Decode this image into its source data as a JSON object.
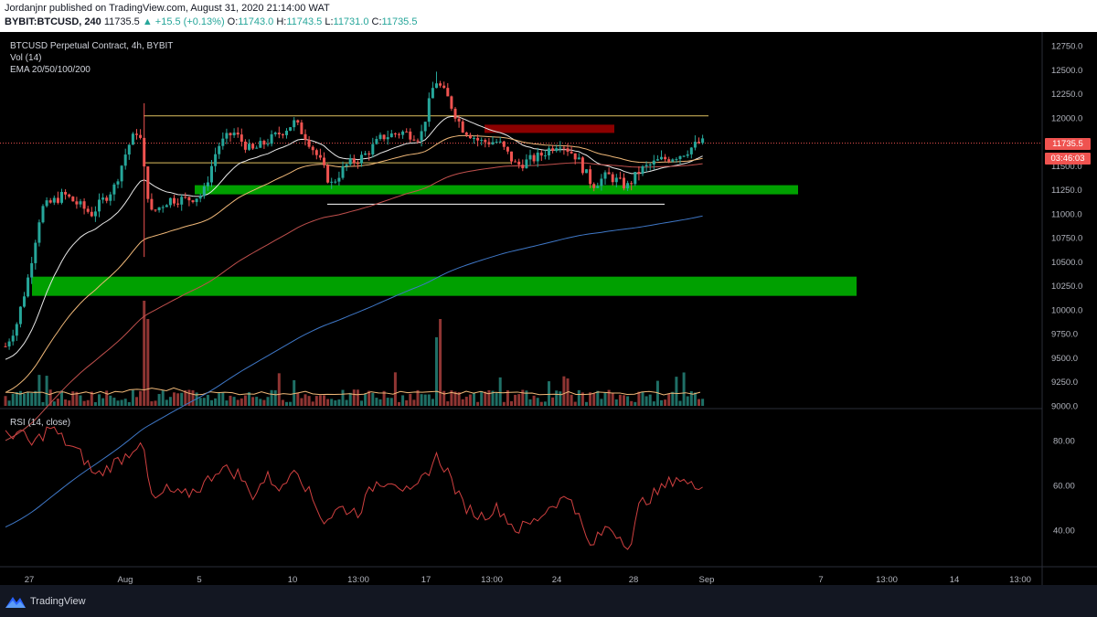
{
  "header": {
    "published": "Jordanjnr published on TradingView.com, August 31, 2020 21:14:00 WAT",
    "symbol": "BYBIT:BTCUSD, 240",
    "last": "11735.5",
    "change": "▲ +15.5 (+0.13%)",
    "ohlc": {
      "o_label": "O:",
      "o": "11743.0",
      "h_label": "H:",
      "h": "11743.5",
      "l_label": "L:",
      "l": "11731.0",
      "c_label": "C:",
      "c": "11735.5"
    }
  },
  "legend": {
    "title": "BTCUSD Perpetual Contract, 4h, BYBIT",
    "vol": "Vol (14)",
    "ema": "EMA 20/50/100/200"
  },
  "rsi_label": "RSI (14, close)",
  "price_axis": {
    "ticks": [
      "12750.0",
      "12500.0",
      "12250.0",
      "12000.0",
      "11750.0",
      "11500.0",
      "11250.0",
      "11000.0",
      "10750.0",
      "10500.0",
      "10250.0",
      "10000.0",
      "9750.0",
      "9500.0",
      "9250.0",
      "9000.0"
    ],
    "current_price": "11735.5",
    "countdown": "03:46:03"
  },
  "rsi_axis": {
    "ticks": [
      "80.00",
      "60.00",
      "40.00"
    ]
  },
  "time_axis": {
    "labels": [
      "27",
      "Aug",
      "5",
      "10",
      "13:00",
      "17",
      "13:00",
      "24",
      "28",
      "Sep",
      "7",
      "13:00",
      "14",
      "13:00"
    ]
  },
  "colors": {
    "up": "#26a69a",
    "down": "#ef5350",
    "zone_green": "#00a000",
    "zone_red": "#8b0000",
    "ema20": "#e8e8e8",
    "ema50": "#f0b878",
    "ema100": "#c0504d",
    "ema200": "#3f78c8",
    "rsi": "#d04040"
  },
  "footer": {
    "brand": "TradingView",
    "logo_icon": "tradingview-logo-icon"
  }
}
